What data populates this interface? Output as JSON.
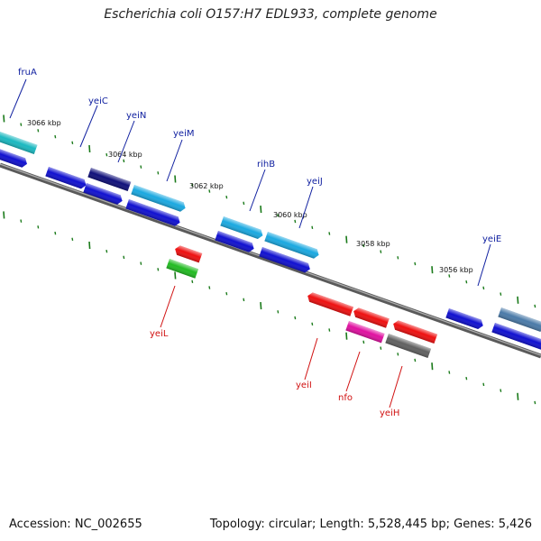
{
  "title": "Escherichia coli O157:H7 EDL933, complete genome",
  "footer": {
    "accession": "Accession: NC_002655",
    "summary": "Topology: circular; Length: 5,528,445 bp; Genes: 5,426"
  },
  "colors": {
    "backbone": "#7a7a7a",
    "tick": "#1a7a1a",
    "label_forward": "#1020a0",
    "label_reverse": "#d01010"
  },
  "scale_labels": [
    "3066 kbp",
    "3064 kbp",
    "3062 kbp",
    "3060 kbp",
    "3058 kbp",
    "3056 kbp"
  ],
  "gene_labels_forward": [
    "fruA",
    "yeiC",
    "yeiN",
    "yeiM",
    "rihB",
    "yeiJ",
    "yeiE"
  ],
  "gene_labels_reverse": [
    "yeiL",
    "yeiI",
    "nfo",
    "yeiH"
  ],
  "features": [
    {
      "strand": "forward",
      "track": 1,
      "color": "#1ab8c0"
    },
    {
      "strand": "forward",
      "track": 1,
      "color": "#10107a"
    },
    {
      "strand": "forward",
      "track": 1,
      "color": "#1aa8e0"
    },
    {
      "strand": "forward",
      "track": 1,
      "color": "#1aa8e0"
    },
    {
      "strand": "forward",
      "track": 1,
      "color": "#1aa8e0"
    },
    {
      "strand": "forward",
      "track": 1,
      "color": "#1010d0"
    },
    {
      "strand": "forward",
      "track": 1,
      "color": "#4a7aa8"
    },
    {
      "strand": "forward",
      "track": 0,
      "color": "#1010d0"
    },
    {
      "strand": "reverse",
      "track": 1,
      "color": "#ee1010"
    },
    {
      "strand": "reverse",
      "track": 1,
      "color": "#ee1010"
    },
    {
      "strand": "reverse",
      "track": 1,
      "color": "#ee1010"
    },
    {
      "strand": "reverse",
      "track": 1,
      "color": "#ee1010"
    },
    {
      "strand": "reverse",
      "track": 2,
      "color": "#22bb22"
    },
    {
      "strand": "reverse",
      "track": 2,
      "color": "#e010a0"
    },
    {
      "strand": "reverse",
      "track": 2,
      "color": "#606060"
    }
  ]
}
